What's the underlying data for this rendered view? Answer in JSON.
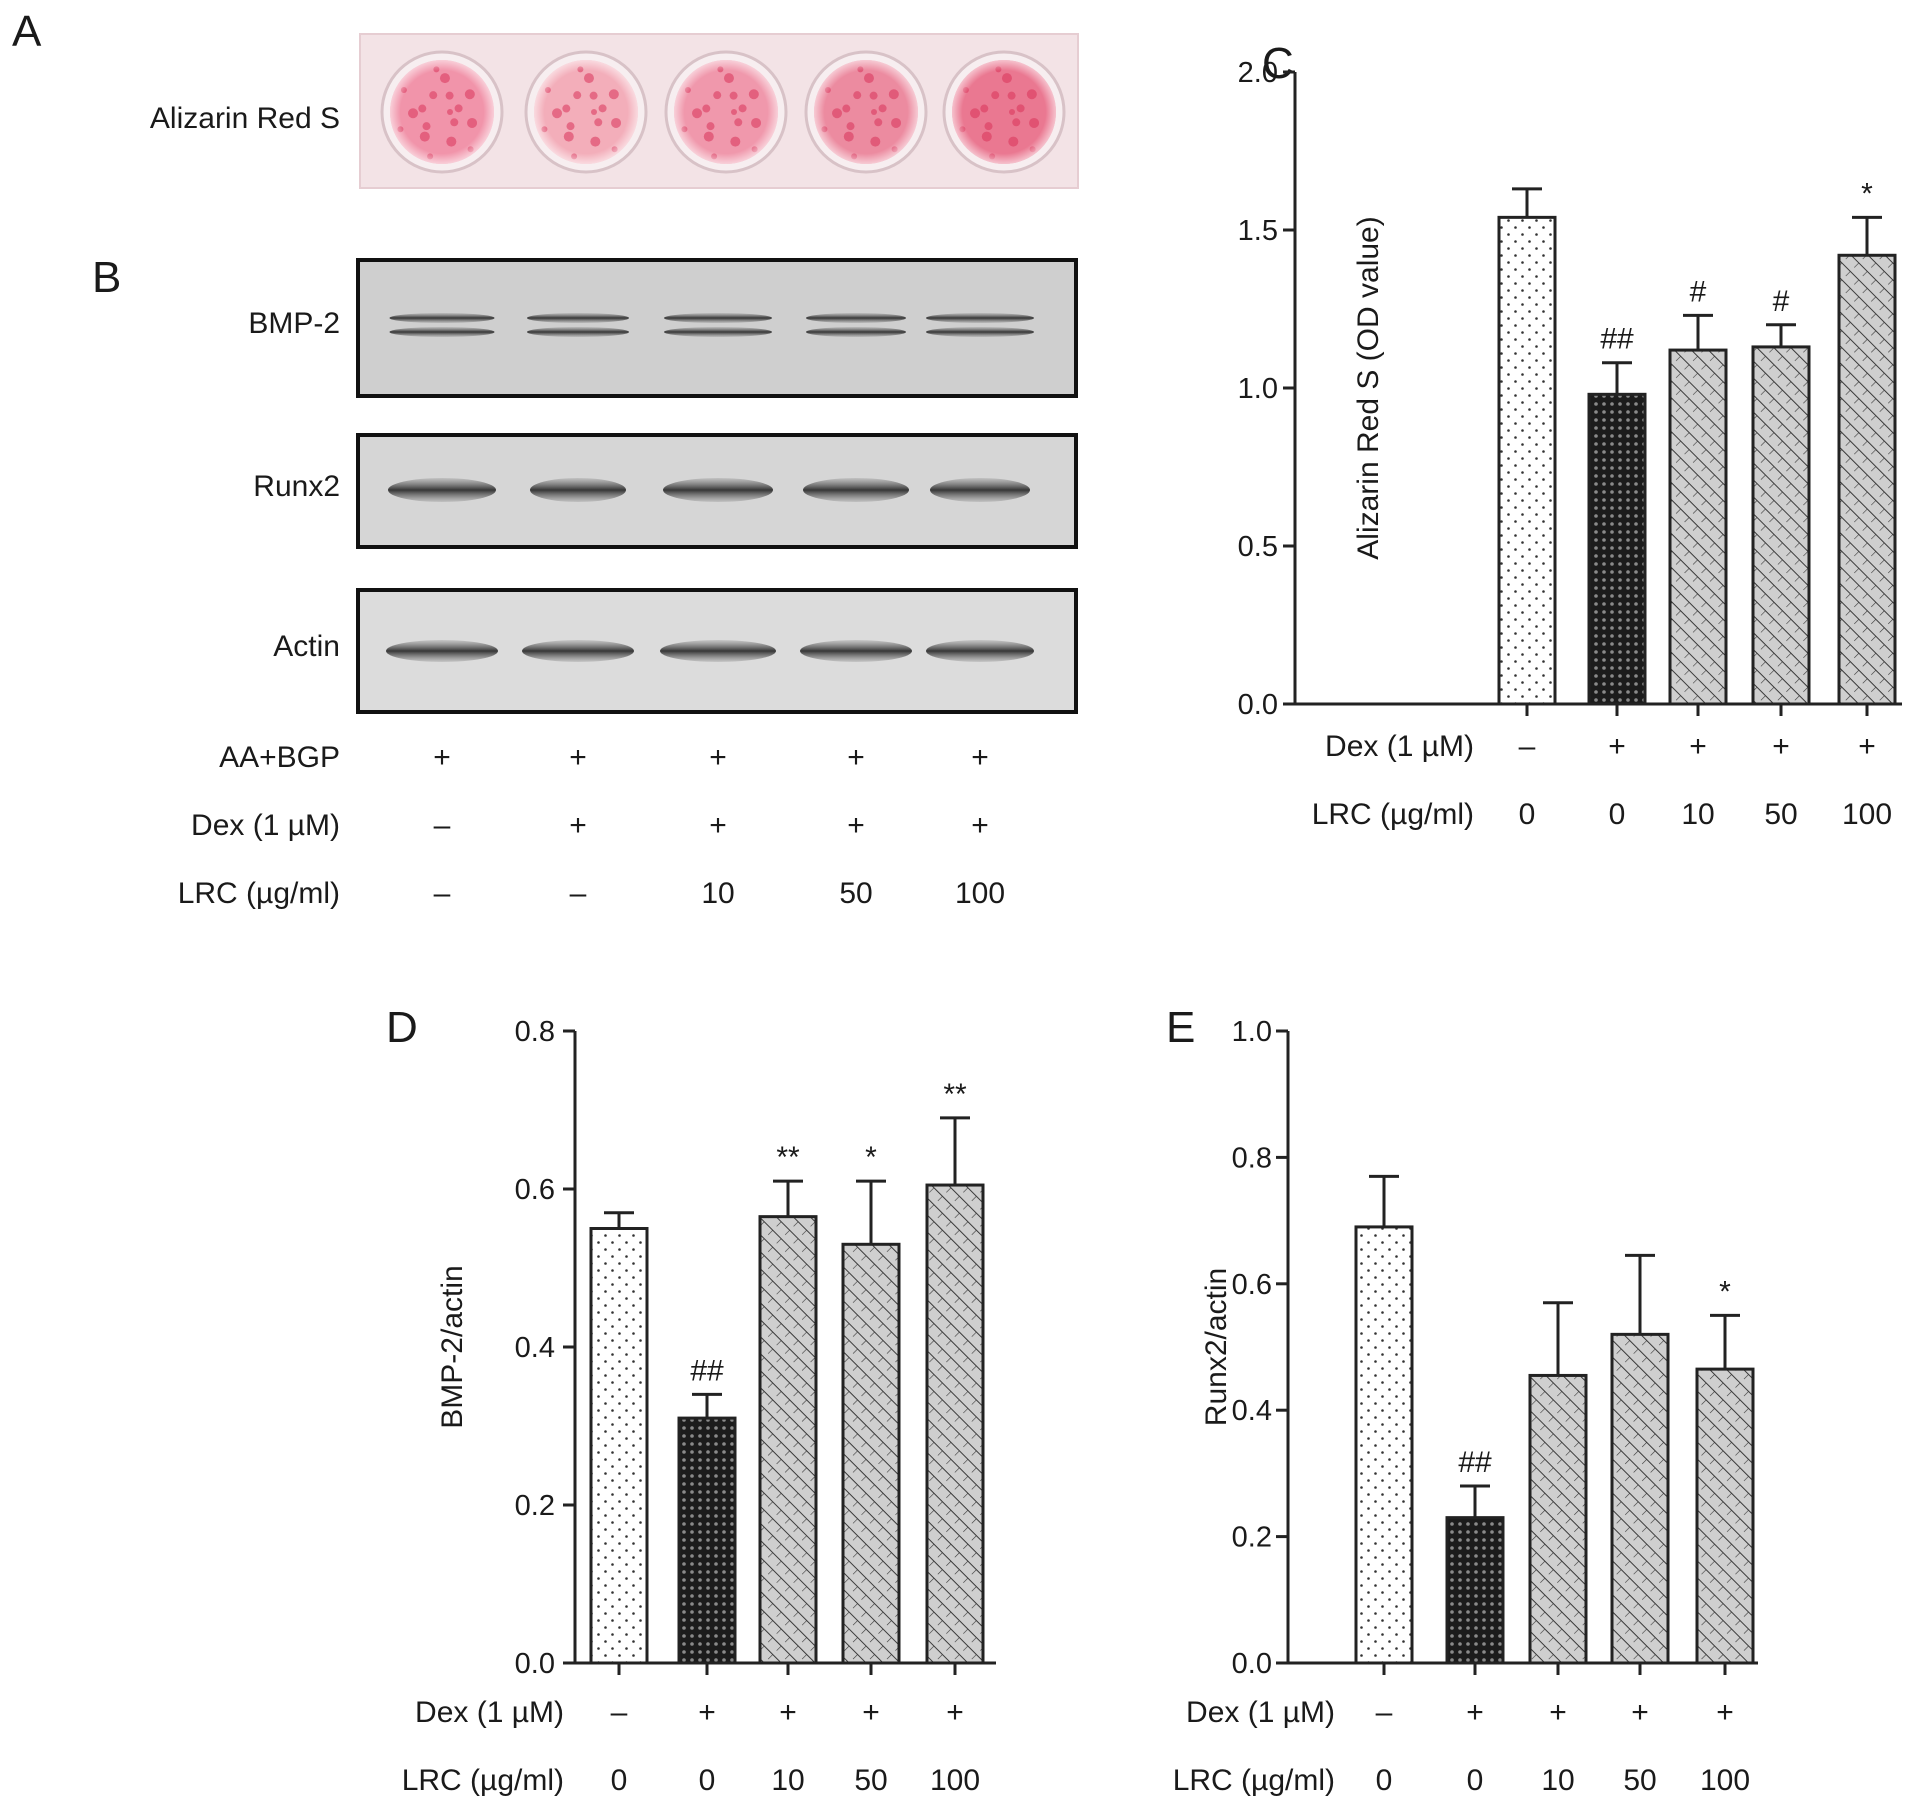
{
  "panel_letters": {
    "a": "A",
    "b": "B",
    "c": "C",
    "d": "D",
    "e": "E"
  },
  "panel_a": {
    "row_label": "Alizarin Red S",
    "well_colors": [
      "#f08aa2",
      "#f2a6b4",
      "#ee8ea4",
      "#ea7f97",
      "#e86a86"
    ]
  },
  "panel_b": {
    "blots": [
      {
        "label": "BMP-2"
      },
      {
        "label": "Runx2"
      },
      {
        "label": "Actin"
      }
    ],
    "conditions": [
      {
        "label": "AA+BGP",
        "values": [
          "+",
          "+",
          "+",
          "+",
          "+"
        ]
      },
      {
        "label": "Dex (1 µM)",
        "values": [
          "–",
          "+",
          "+",
          "+",
          "+"
        ]
      },
      {
        "label": "LRC (µg/ml)",
        "values": [
          "–",
          "–",
          "10",
          "50",
          "100"
        ]
      }
    ]
  },
  "chart_data": [
    {
      "panel": "C",
      "type": "bar",
      "ylabel": "Alizarin Red S (OD value)",
      "ylim": [
        0,
        2.0
      ],
      "yticks": [
        "0.0",
        "0.5",
        "1.0",
        "1.5",
        "2.0"
      ],
      "values": [
        1.54,
        0.98,
        1.12,
        1.13,
        1.42
      ],
      "errors": [
        0.09,
        0.1,
        0.11,
        0.07,
        0.12
      ],
      "annotations": [
        "",
        "##",
        "#",
        "#",
        "*"
      ],
      "patterns": [
        "dots",
        "dark-grid",
        "hatch",
        "hatch",
        "hatch"
      ],
      "condition_rows": [
        {
          "label": "Dex (1 µM)",
          "values": [
            "–",
            "+",
            "+",
            "+",
            "+"
          ]
        },
        {
          "label": "LRC (µg/ml)",
          "values": [
            "0",
            "0",
            "10",
            "50",
            "100"
          ]
        }
      ]
    },
    {
      "panel": "D",
      "type": "bar",
      "ylabel": "BMP-2/actin",
      "ylim": [
        0,
        0.8
      ],
      "yticks": [
        "0.0",
        "0.2",
        "0.4",
        "0.6",
        "0.8"
      ],
      "values": [
        0.55,
        0.31,
        0.565,
        0.53,
        0.605
      ],
      "errors": [
        0.02,
        0.03,
        0.045,
        0.08,
        0.085
      ],
      "annotations": [
        "",
        "##",
        "**",
        "*",
        "**"
      ],
      "patterns": [
        "dots",
        "dark-grid",
        "hatch",
        "hatch",
        "hatch"
      ],
      "condition_rows": [
        {
          "label": "Dex (1 µM)",
          "values": [
            "–",
            "+",
            "+",
            "+",
            "+"
          ]
        },
        {
          "label": "LRC (µg/ml)",
          "values": [
            "0",
            "0",
            "10",
            "50",
            "100"
          ]
        }
      ]
    },
    {
      "panel": "E",
      "type": "bar",
      "ylabel": "Runx2/actin",
      "ylim": [
        0,
        1.0
      ],
      "yticks": [
        "0.0",
        "0.2",
        "0.4",
        "0.6",
        "0.8",
        "1.0"
      ],
      "values": [
        0.69,
        0.23,
        0.455,
        0.52,
        0.465
      ],
      "errors": [
        0.08,
        0.05,
        0.115,
        0.125,
        0.085
      ],
      "annotations": [
        "",
        "##",
        "",
        "",
        "*"
      ],
      "patterns": [
        "dots",
        "dark-grid",
        "hatch",
        "hatch",
        "hatch"
      ],
      "condition_rows": [
        {
          "label": "Dex (1 µM)",
          "values": [
            "–",
            "+",
            "+",
            "+",
            "+"
          ]
        },
        {
          "label": "LRC (µg/ml)",
          "values": [
            "0",
            "0",
            "10",
            "50",
            "100"
          ]
        }
      ]
    }
  ]
}
